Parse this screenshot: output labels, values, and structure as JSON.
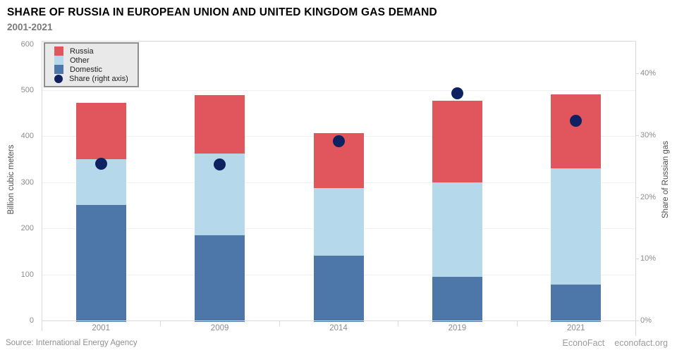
{
  "header": {
    "title": "SHARE OF RUSSIA IN EUROPEAN UNION AND UNITED KINGDOM GAS DEMAND",
    "subtitle": "2001-2021"
  },
  "legend": {
    "items": [
      {
        "label": "Russia",
        "color": "#e0565c",
        "shape": "square"
      },
      {
        "label": "Other",
        "color": "#b5d8eb",
        "shape": "square"
      },
      {
        "label": "Domestic",
        "color": "#4d77a8",
        "shape": "square"
      },
      {
        "label": "Share (right axis)",
        "color": "#0e2262",
        "shape": "circle"
      }
    ]
  },
  "chart_data": {
    "type": "bar",
    "stacked": true,
    "title": "SHARE OF RUSSIA IN EUROPEAN UNION AND UNITED KINGDOM GAS DEMAND 2001-2021",
    "categories": [
      "2001",
      "2009",
      "2014",
      "2019",
      "2021"
    ],
    "series": [
      {
        "name": "Domestic",
        "color": "#4d77a8",
        "values": [
          250,
          185,
          140,
          95,
          78
        ]
      },
      {
        "name": "Other",
        "color": "#b5d8eb",
        "values": [
          100,
          178,
          147,
          205,
          253
        ]
      },
      {
        "name": "Russia",
        "color": "#e0565c",
        "values": [
          122,
          127,
          120,
          177,
          160
        ]
      }
    ],
    "point_series": {
      "name": "Share (right axis)",
      "color": "#0e2262",
      "values": [
        25.4,
        25.3,
        29,
        36.8,
        32.4
      ]
    },
    "left_axis": {
      "label": "Billion cubic meters",
      "ticks": [
        0,
        100,
        200,
        300,
        400,
        500,
        600
      ],
      "min": 0,
      "max": 607
    },
    "right_axis": {
      "label": "Share of Russian gas",
      "ticks": [
        "0%",
        "10%",
        "20%",
        "30%",
        "40%"
      ],
      "tick_values": [
        0,
        10,
        20,
        30,
        40
      ],
      "min": 0,
      "max": 45.3
    },
    "grid": "horizontal-faint",
    "legend_position": "top-left-inside"
  },
  "footer": {
    "source": "Source: International Energy Agency",
    "brand": "EconoFact",
    "site": "econofact.org"
  }
}
